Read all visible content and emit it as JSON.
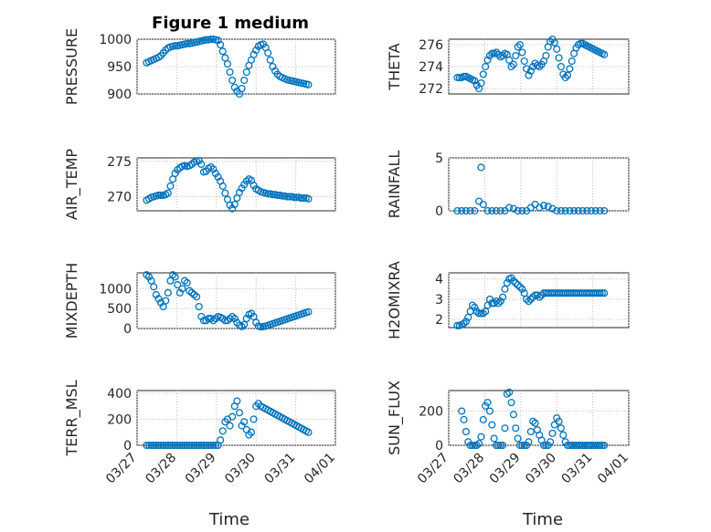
{
  "figure": {
    "title": "Figure 1 medium",
    "xlabel": "Time"
  },
  "colors": {
    "marker": "#0072BD",
    "axis": "#262626",
    "grid": "#bdbdbd",
    "bg": "#ffffff"
  },
  "chart_data": [
    {
      "type": "scatter",
      "ylabel": "PRESSURE",
      "xlim": [
        0,
        5
      ],
      "ylim": [
        900,
        1000
      ],
      "yticks": [
        900,
        950,
        1000
      ],
      "x": [
        0.24,
        0.3,
        0.36,
        0.42,
        0.48,
        0.54,
        0.6,
        0.66,
        0.72,
        0.78,
        0.84,
        0.9,
        0.96,
        1.02,
        1.08,
        1.14,
        1.2,
        1.26,
        1.32,
        1.38,
        1.44,
        1.5,
        1.56,
        1.62,
        1.68,
        1.74,
        1.8,
        1.86,
        1.92,
        1.98,
        2.04,
        2.1,
        2.16,
        2.22,
        2.28,
        2.34,
        2.4,
        2.46,
        2.52,
        2.58,
        2.64,
        2.7,
        2.76,
        2.82,
        2.88,
        2.94,
        3.0,
        3.06,
        3.12,
        3.18,
        3.24,
        3.3,
        3.36,
        3.42,
        3.48,
        3.54,
        3.6,
        3.66,
        3.72,
        3.78,
        3.84,
        3.9,
        3.96,
        4.02,
        4.08,
        4.14,
        4.2,
        4.26,
        4.32
      ],
      "y": [
        957,
        959,
        961,
        963,
        965,
        967,
        970,
        975,
        980,
        984,
        986,
        987,
        988,
        988,
        989,
        990,
        991,
        992,
        992,
        993,
        994,
        995,
        996,
        997,
        998,
        999,
        999,
        1000,
        1000,
        999,
        998,
        990,
        978,
        966,
        955,
        940,
        925,
        912,
        905,
        900,
        910,
        925,
        940,
        952,
        962,
        972,
        980,
        987,
        990,
        991,
        985,
        975,
        962,
        950,
        942,
        936,
        932,
        930,
        928,
        926,
        925,
        924,
        923,
        922,
        921,
        920,
        919,
        918,
        917
      ],
      "x_cut": 3.6
    }
  ]
}
